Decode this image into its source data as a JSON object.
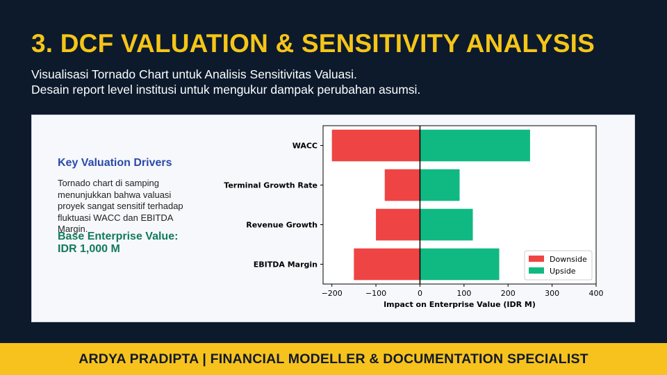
{
  "header": {
    "title": "3. DCF VALUATION & SENSITIVITY ANALYSIS",
    "subtitle_line1": "Visualisasi Tornado Chart untuk Analisis Sensitivitas Valuasi.",
    "subtitle_line2": "Desain report level institusi untuk mengukur dampak perubahan asumsi."
  },
  "sidebar": {
    "heading": "Key Valuation Drivers",
    "body": "Tornado chart di samping menunjukkan bahwa valuasi proyek sangat sensitif terhadap fluktuasi WACC dan EBITDA Margin.",
    "base_value_line1": "Base Enterprise Value:",
    "base_value_line2": "IDR 1,000 M"
  },
  "chart_data": {
    "type": "bar",
    "orientation": "horizontal",
    "categories": [
      "WACC",
      "Terminal Growth Rate",
      "Revenue Growth",
      "EBITDA Margin"
    ],
    "series": [
      {
        "name": "Downside",
        "color": "#ef4444",
        "values": [
          -200,
          -80,
          -100,
          -150
        ]
      },
      {
        "name": "Upside",
        "color": "#10b981",
        "values": [
          250,
          90,
          120,
          180
        ]
      }
    ],
    "xlabel": "Impact on Enterprise Value (IDR M)",
    "xlim": [
      -220,
      400
    ],
    "xticks": [
      -200,
      -100,
      0,
      100,
      200,
      300,
      400
    ],
    "xtick_labels": [
      "−200",
      "−100",
      "0",
      "100",
      "200",
      "300",
      "400"
    ],
    "legend_position": "bottom-right",
    "grid": false
  },
  "footer": {
    "text": "ARDYA PRADIPTA  |  FINANCIAL MODELLER & DOCUMENTATION SPECIALIST"
  }
}
